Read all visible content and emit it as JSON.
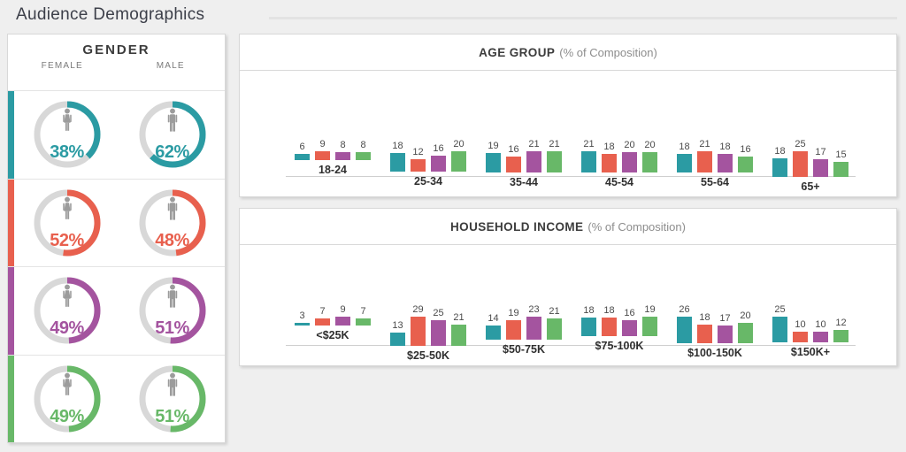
{
  "page": {
    "title": "Audience Demographics"
  },
  "colors": {
    "teal": "#2B9BA3",
    "red": "#E8604E",
    "purple": "#A4549F",
    "green": "#68B868",
    "ring_gray": "#D8D8D8",
    "icon_gray": "#9C9C9C"
  },
  "gender_panel": {
    "title": "GENDER",
    "columns": [
      "FEMALE",
      "MALE"
    ],
    "icons": [
      "female-person-icon",
      "male-person-icon"
    ]
  },
  "age_panel": {
    "title": "AGE GROUP",
    "subtitle": "(% of Composition)"
  },
  "income_panel": {
    "title": "HOUSEHOLD INCOME",
    "subtitle": "(% of Composition)"
  },
  "chart_data": [
    {
      "type": "pie",
      "title": "GENDER",
      "column_labels": [
        "FEMALE",
        "MALE"
      ],
      "rows": [
        {
          "color": "#2B9BA3",
          "female": "38%",
          "male": "62%"
        },
        {
          "color": "#E8604E",
          "female": "52%",
          "male": "48%"
        },
        {
          "color": "#A4549F",
          "female": "49%",
          "male": "51%"
        },
        {
          "color": "#68B868",
          "female": "49%",
          "male": "51%"
        }
      ]
    },
    {
      "type": "bar",
      "title": "AGE GROUP",
      "subtitle": "(% of Composition)",
      "ylabel": "% of Composition",
      "ylim": [
        0,
        30
      ],
      "grid": false,
      "legend": "none",
      "categories": [
        "18-24",
        "25-34",
        "35-44",
        "45-54",
        "55-64",
        "65+"
      ],
      "series": [
        {
          "name": "teal",
          "color": "#2B9BA3",
          "values": [
            6,
            18,
            19,
            21,
            18,
            18
          ]
        },
        {
          "name": "red",
          "color": "#E8604E",
          "values": [
            9,
            12,
            16,
            18,
            21,
            25
          ]
        },
        {
          "name": "purple",
          "color": "#A4549F",
          "values": [
            8,
            16,
            21,
            20,
            18,
            17
          ]
        },
        {
          "name": "green",
          "color": "#68B868",
          "values": [
            8,
            20,
            21,
            20,
            16,
            15
          ]
        }
      ]
    },
    {
      "type": "bar",
      "title": "HOUSEHOLD INCOME",
      "subtitle": "(% of Composition)",
      "ylabel": "% of Composition",
      "ylim": [
        0,
        30
      ],
      "grid": false,
      "legend": "none",
      "categories": [
        "<$25K",
        "$25-50K",
        "$50-75K",
        "$75-100K",
        "$100-150K",
        "$150K+"
      ],
      "series": [
        {
          "name": "teal",
          "color": "#2B9BA3",
          "values": [
            3,
            13,
            14,
            18,
            26,
            25
          ]
        },
        {
          "name": "red",
          "color": "#E8604E",
          "values": [
            7,
            29,
            19,
            18,
            18,
            10
          ]
        },
        {
          "name": "purple",
          "color": "#A4549F",
          "values": [
            9,
            25,
            23,
            16,
            17,
            10
          ]
        },
        {
          "name": "green",
          "color": "#68B868",
          "values": [
            7,
            21,
            21,
            19,
            20,
            12
          ]
        }
      ]
    }
  ]
}
